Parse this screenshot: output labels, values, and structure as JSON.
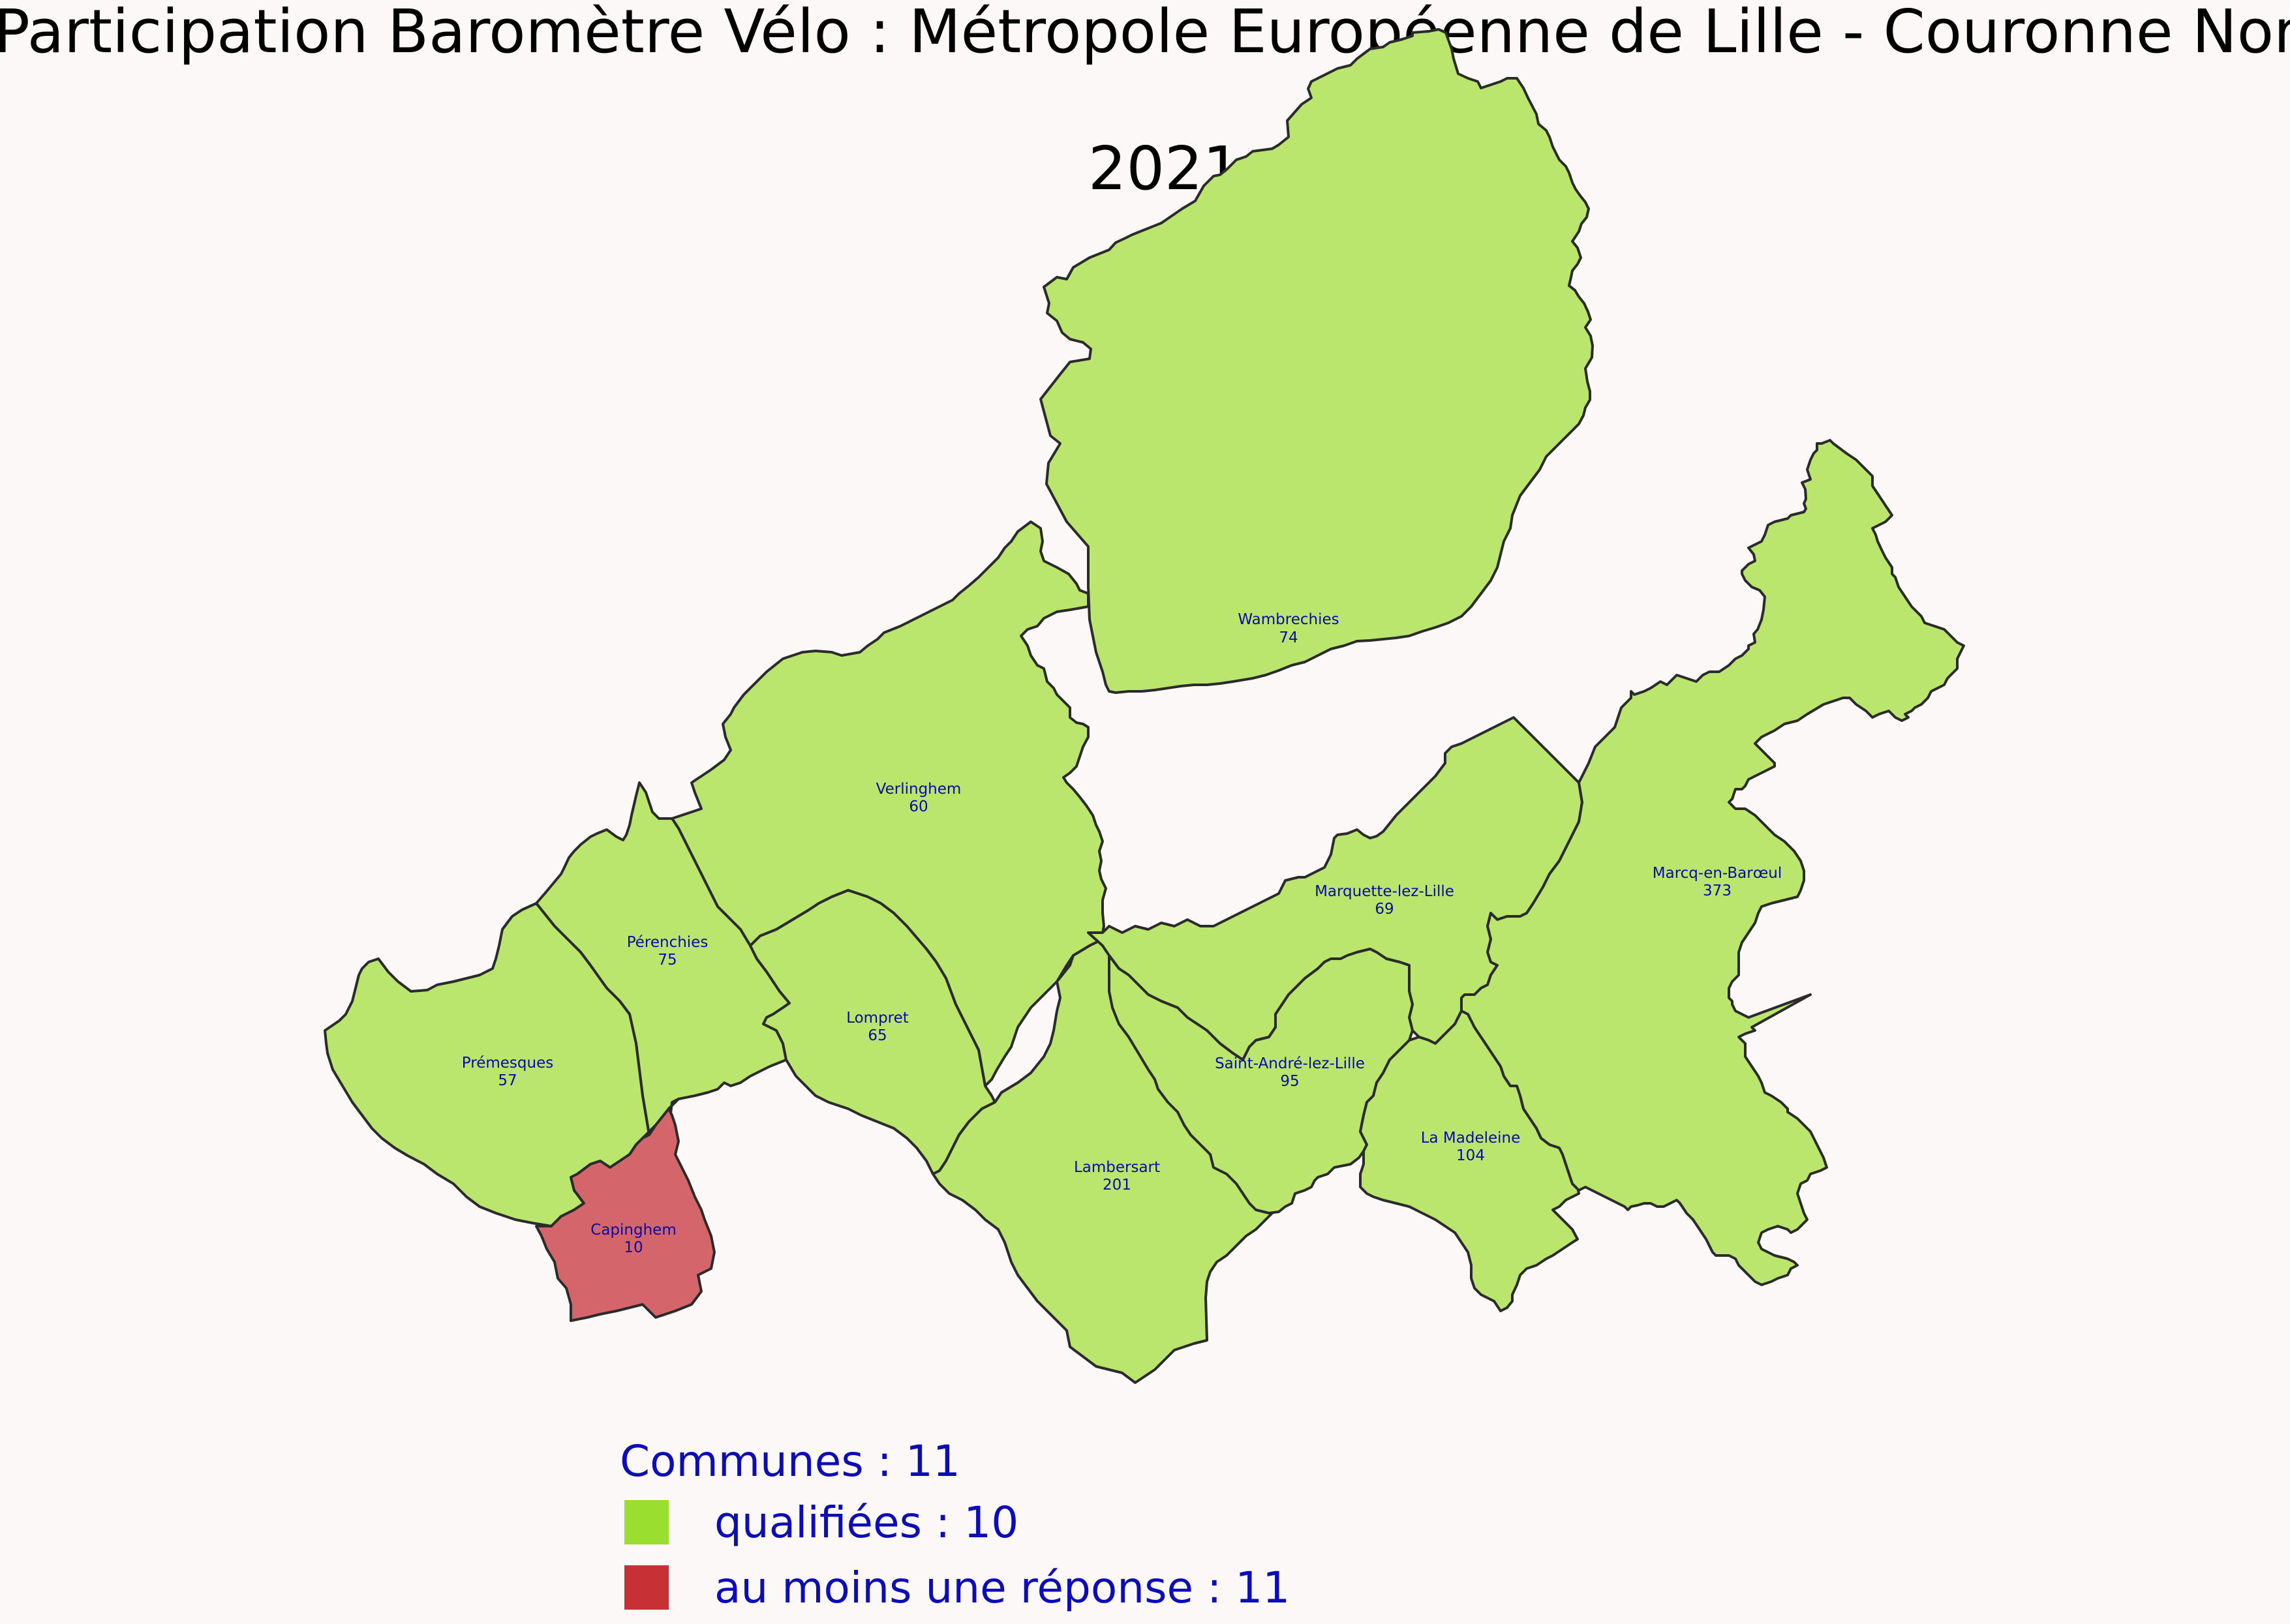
{
  "title": "Participation Baromètre Vélo : Métropole Européenne de Lille - Couronne Nord",
  "subtitle": "2021",
  "colors": {
    "background": "#fcf8f7",
    "qualified_fill": "#bae66d",
    "response_fill": "#d4666b",
    "legend_qualified": "#9ade2f",
    "legend_response": "#c73035",
    "label_text": "#0a0aa8",
    "legend_text": "#0d0db8"
  },
  "communes": [
    {
      "id": "wambrechies",
      "name": "Wambrechies",
      "count": "74",
      "status": "qualified"
    },
    {
      "id": "verlinghem",
      "name": "Verlinghem",
      "count": "60",
      "status": "qualified"
    },
    {
      "id": "perenchies",
      "name": "Pérenchies",
      "count": "75",
      "status": "qualified"
    },
    {
      "id": "premesques",
      "name": "Prémesques",
      "count": "57",
      "status": "qualified"
    },
    {
      "id": "capinghem",
      "name": "Capinghem",
      "count": "10",
      "status": "response"
    },
    {
      "id": "lompret",
      "name": "Lompret",
      "count": "65",
      "status": "qualified"
    },
    {
      "id": "lambersart",
      "name": "Lambersart",
      "count": "201",
      "status": "qualified"
    },
    {
      "id": "marquette",
      "name": "Marquette-lez-Lille",
      "count": "69",
      "status": "qualified"
    },
    {
      "id": "saint-andre",
      "name": "Saint-André-lez-Lille",
      "count": "95",
      "status": "qualified"
    },
    {
      "id": "la-madeleine",
      "name": "La Madeleine",
      "count": "104",
      "status": "qualified"
    },
    {
      "id": "marcq",
      "name": "Marcq-en-Barœul",
      "count": "373",
      "status": "qualified"
    }
  ],
  "legend": {
    "header": "Communes : 11",
    "qualified": "qualifiées : 10",
    "response": "au moins une réponse : 11"
  }
}
